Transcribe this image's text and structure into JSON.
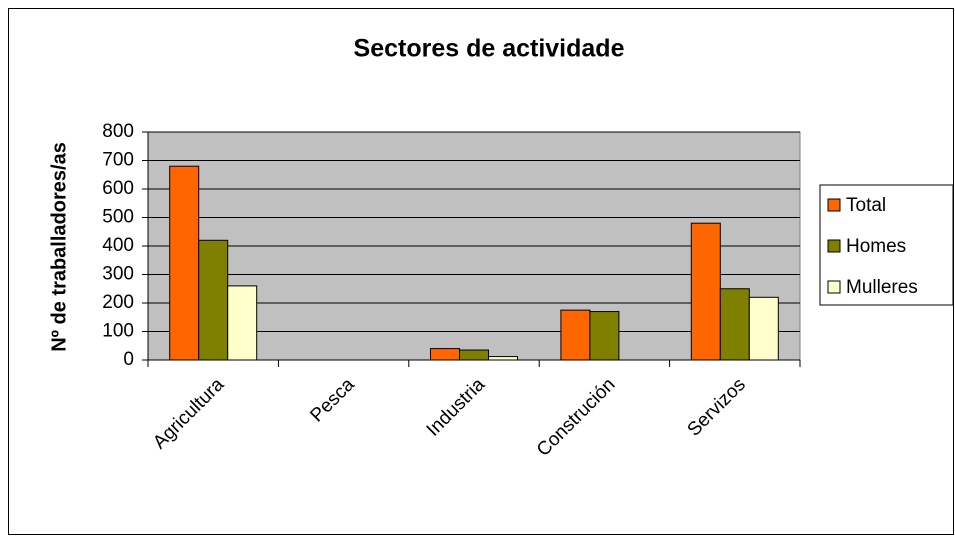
{
  "chart_data": {
    "type": "bar",
    "title": "Sectores de actividade",
    "y_label": "Nº de traballadores/as",
    "categories": [
      "Agricultura",
      "Pesca",
      "Industria",
      "Construción",
      "Servizos"
    ],
    "series": [
      {
        "name": "Total",
        "color": "#ff6600",
        "values": [
          680,
          0,
          40,
          175,
          480
        ]
      },
      {
        "name": "Homes",
        "color": "#808000",
        "values": [
          420,
          0,
          35,
          170,
          250
        ]
      },
      {
        "name": "Mulleres",
        "color": "#ffffcc",
        "values": [
          260,
          0,
          12,
          0,
          220
        ]
      }
    ],
    "ylim": [
      0,
      800
    ],
    "yticks": [
      0,
      100,
      200,
      300,
      400,
      500,
      600,
      700,
      800
    ],
    "grid": true,
    "legend": "right",
    "plot_background": "#c0c0c0"
  }
}
